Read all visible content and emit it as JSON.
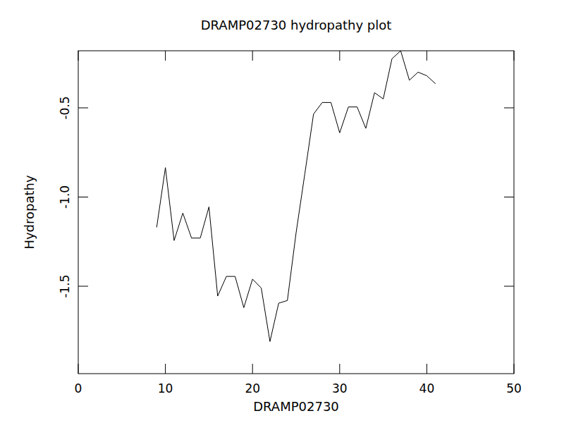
{
  "chart_data": {
    "type": "line",
    "title": "DRAMP02730 hydropathy plot",
    "x_label": "DRAMP02730",
    "y_label": "Hydropathy",
    "x": [
      9,
      10,
      11,
      12,
      13,
      14,
      15,
      16,
      17,
      18,
      19,
      20,
      21,
      22,
      23,
      24,
      25,
      26,
      27,
      28,
      29,
      30,
      31,
      32,
      33,
      34,
      35,
      36,
      37,
      38,
      39,
      40,
      41
    ],
    "values": [
      -1.17,
      -0.835,
      -1.244,
      -1.09,
      -1.23,
      -1.23,
      -1.055,
      -1.555,
      -1.445,
      -1.445,
      -1.62,
      -1.46,
      -1.51,
      -1.81,
      -1.595,
      -1.58,
      -1.2,
      -0.87,
      -0.535,
      -0.47,
      -0.47,
      -0.64,
      -0.495,
      -0.495,
      -0.615,
      -0.415,
      -0.45,
      -0.225,
      -0.18,
      -0.345,
      -0.3,
      -0.32,
      -0.365
    ],
    "color": "#000000",
    "xlim": [
      0,
      50
    ],
    "xticks": [
      0,
      10,
      20,
      30,
      40,
      50
    ],
    "ylim": [
      -1.99,
      -0.18
    ],
    "yticks": [
      -0.5,
      {
        "value": -1,
        "label": "-1.0"
      },
      -1.5
    ],
    "grid": false
  }
}
